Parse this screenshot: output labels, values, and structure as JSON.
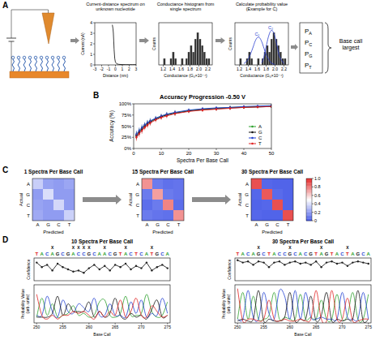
{
  "panel_labels": [
    "A",
    "B",
    "C",
    "D"
  ],
  "panel_a": {
    "probability_symbol": "P",
    "bases": [
      "A",
      "C",
      "G",
      "T"
    ],
    "decision": "Base call largest"
  },
  "chart_data": [
    {
      "type": "line",
      "title": "Current-distance spectrum on unknown nucleotide",
      "x_label": "Distance (nm)",
      "y_label": "Current (nA)",
      "x": [
        -0.45,
        -0.4,
        -0.35,
        -0.3,
        -0.25,
        -0.2,
        -0.1,
        0,
        0.2,
        0.5,
        1,
        1.5,
        2,
        2.5,
        3
      ],
      "values": [
        3.8,
        3.6,
        3.4,
        3.0,
        2.3,
        1.5,
        0.6,
        0.25,
        0.1,
        0.05,
        0.03,
        0.02,
        0.02,
        0.02,
        0.02
      ],
      "color": "#222222",
      "xlim": [
        -3,
        3
      ],
      "xticks": [
        -3,
        -2,
        -1,
        0,
        1,
        2,
        3
      ],
      "ylim": [
        0,
        4
      ],
      "yticks": [
        0,
        1,
        2,
        3,
        4
      ]
    },
    {
      "type": "histogram",
      "title": "Conductance histogram from single spectrum",
      "x_label": "Conductance (G₀×10⁻⁴)",
      "y_label": "Counts",
      "bins": [
        1.15,
        1.2,
        1.25,
        1.3,
        1.35,
        1.4,
        1.45,
        1.5,
        1.55,
        1.6,
        1.65,
        1.7,
        1.75,
        1.8,
        1.85,
        1.9,
        1.95,
        2.0,
        2.05,
        2.1,
        2.15,
        2.2,
        2.25
      ],
      "counts": [
        0,
        1,
        0,
        0,
        1,
        2,
        1,
        0,
        0,
        1,
        0,
        1,
        2,
        3,
        2,
        4,
        5,
        4,
        3,
        2,
        1,
        1
      ],
      "color": "#333333",
      "xlim": [
        1.1,
        2.3
      ],
      "xticks": [
        1.2,
        1.4,
        1.6,
        1.8,
        {
          "value": 2,
          "label": "2.0"
        },
        2.2
      ],
      "ylim": [
        0,
        6.5
      ],
      "tick_labels": "x"
    },
    {
      "type": "histogram",
      "title": "Calculate probability value (Example for C)",
      "x_label": "Conductance (G₀×10⁻⁴)",
      "y_label": "Counts",
      "bins": [
        1.15,
        1.2,
        1.25,
        1.3,
        1.35,
        1.4,
        1.45,
        1.5,
        1.55,
        1.6,
        1.65,
        1.7,
        1.75,
        1.8,
        1.85,
        1.9,
        1.95,
        2.0,
        2.05,
        2.1,
        2.15,
        2.2,
        2.25
      ],
      "counts": [
        0,
        1,
        0,
        0,
        1,
        2,
        1,
        0,
        0,
        1,
        0,
        1,
        2,
        3,
        2,
        4,
        5,
        4,
        3,
        2,
        1,
        1
      ],
      "color": "#333333",
      "xlim": [
        1.1,
        2.3
      ],
      "xticks": [
        1.2,
        1.4,
        1.6,
        1.8,
        {
          "value": 2,
          "label": "2.0"
        },
        2.2
      ],
      "ylim": [
        0,
        6.5
      ],
      "tick_labels": "x",
      "series": [
        {
          "name": "C₁",
          "color": "#2b3fd1",
          "type": "line",
          "line_style": "smooth",
          "x": [
            1.3,
            1.4,
            1.5,
            1.55,
            1.6,
            1.65,
            1.7,
            1.75,
            1.8,
            1.9,
            2.0
          ],
          "values": [
            0.2,
            0.9,
            2.6,
            3.6,
            4.2,
            4.2,
            3.6,
            2.6,
            1.6,
            0.4,
            0.05
          ]
        },
        {
          "name": "C₂",
          "color": "#2b3fd1",
          "type": "line",
          "line_style": "smooth",
          "x": [
            1.7,
            1.75,
            1.8,
            1.85,
            1.9,
            1.95,
            2.0,
            2.05,
            2.1,
            2.2
          ],
          "values": [
            0.3,
            1.2,
            2.8,
            4.3,
            5.2,
            5.2,
            4.3,
            2.8,
            1.3,
            0.2
          ]
        }
      ]
    },
    {
      "type": "line",
      "title": "Accuracy Progression -0.50 V",
      "x_label": "Spectra Per Base Call",
      "y_label": "Accuracy (%)",
      "x": [
        1,
        2,
        3,
        4,
        5,
        6,
        8,
        10,
        12,
        15,
        20,
        25,
        30,
        35,
        40,
        45,
        50
      ],
      "xlim": [
        0,
        50
      ],
      "xticks": [
        0,
        10,
        20,
        30,
        40,
        50
      ],
      "ylim": [
        0,
        100
      ],
      "yticks": [
        {
          "value": 0,
          "label": "0%"
        },
        {
          "value": 25,
          "label": "25%"
        },
        {
          "value": 50,
          "label": "50%"
        },
        {
          "value": 75,
          "label": "75%"
        },
        {
          "value": 100,
          "label": "100%"
        }
      ],
      "legend": "lower right",
      "marker": "circle",
      "series": [
        {
          "name": "A",
          "color": "#2ca02c",
          "values": [
            30,
            38,
            45,
            52,
            57,
            61,
            67,
            72,
            76,
            80,
            85,
            88,
            90,
            92,
            93,
            94,
            95
          ],
          "errors": [
            8,
            7,
            7,
            6,
            6,
            6,
            5,
            5,
            5,
            5,
            4,
            4,
            4,
            4,
            3,
            3,
            3
          ]
        },
        {
          "name": "G",
          "color": "#111111",
          "values": [
            28,
            36,
            43,
            50,
            55,
            59,
            66,
            71,
            75,
            79,
            84,
            87,
            89,
            91,
            92,
            93,
            94
          ],
          "errors": [
            8,
            7,
            7,
            6,
            6,
            6,
            5,
            5,
            5,
            5,
            4,
            4,
            4,
            4,
            3,
            3,
            3
          ]
        },
        {
          "name": "C",
          "color": "#1f3fd0",
          "values": [
            32,
            40,
            47,
            53,
            58,
            62,
            68,
            73,
            77,
            81,
            86,
            89,
            91,
            92,
            94,
            95,
            96
          ],
          "errors": [
            8,
            7,
            7,
            6,
            6,
            6,
            5,
            5,
            5,
            5,
            4,
            4,
            4,
            4,
            3,
            3,
            3
          ]
        },
        {
          "name": "T",
          "color": "#e02020",
          "values": [
            25,
            33,
            40,
            47,
            52,
            57,
            64,
            69,
            73,
            78,
            83,
            86,
            88,
            90,
            92,
            93,
            94
          ],
          "errors": [
            8,
            7,
            7,
            6,
            6,
            6,
            5,
            5,
            5,
            5,
            4,
            4,
            4,
            4,
            3,
            3,
            3
          ]
        }
      ]
    },
    {
      "type": "heatmap",
      "title": "1 Spectra Per Base Call",
      "x_label": "Predicted",
      "y_label": "Actual",
      "categories": [
        "A",
        "G",
        "C",
        "T"
      ],
      "cells": [
        [
          0.35,
          0.22,
          0.2,
          0.23
        ],
        [
          0.2,
          0.4,
          0.2,
          0.2
        ],
        [
          0.22,
          0.2,
          0.38,
          0.2
        ],
        [
          0.24,
          0.2,
          0.2,
          0.36
        ]
      ],
      "color_range": [
        0,
        1
      ]
    },
    {
      "type": "heatmap",
      "title": "15 Spectra Per Base Call",
      "x_label": "Predicted",
      "y_label": "Actual",
      "categories": [
        "A",
        "G",
        "C",
        "T"
      ],
      "cells": [
        [
          0.75,
          0.1,
          0.07,
          0.08
        ],
        [
          0.1,
          0.72,
          0.1,
          0.08
        ],
        [
          0.06,
          0.1,
          0.78,
          0.06
        ],
        [
          0.1,
          0.08,
          0.07,
          0.75
        ]
      ],
      "color_range": [
        0,
        1
      ]
    },
    {
      "type": "heatmap",
      "title": "30 Spectra Per Base Call",
      "x_label": "Predicted",
      "y_label": "Actual",
      "categories": [
        "A",
        "G",
        "C",
        "T"
      ],
      "cells": [
        [
          0.9,
          0.04,
          0.03,
          0.03
        ],
        [
          0.04,
          0.88,
          0.05,
          0.03
        ],
        [
          0.03,
          0.04,
          0.9,
          0.03
        ],
        [
          0.04,
          0.03,
          0.03,
          0.9
        ]
      ],
      "color_range": [
        0,
        1
      ],
      "color_ticks": [
        0,
        0.2,
        0.4,
        0.6,
        0.8,
        {
          "value": 1,
          "label": "1.0"
        }
      ]
    },
    {
      "type": "line",
      "title": "10 Spectra Per Base Call",
      "y_label": "Confidence",
      "sequence": "TACAGCGACCGCAACGTACTCATGCA",
      "mismatch_marker": "X",
      "mismatches": [
        253,
        257,
        258,
        259,
        260,
        263,
        267,
        272
      ],
      "x": [
        250,
        251,
        252,
        253,
        254,
        255,
        256,
        257,
        258,
        259,
        260,
        261,
        262,
        263,
        264,
        265,
        266,
        267,
        268,
        269,
        270,
        271,
        272,
        273,
        274,
        275
      ],
      "values": [
        0.8,
        0.6,
        0.7,
        0.45,
        0.75,
        0.6,
        0.5,
        0.4,
        0.45,
        0.35,
        0.55,
        0.7,
        0.5,
        0.65,
        0.45,
        0.7,
        0.6,
        0.75,
        0.5,
        0.65,
        0.55,
        0.8,
        0.45,
        0.6,
        0.7,
        0.55
      ],
      "color": "#222222",
      "marker": "circle",
      "xlim": [
        249.5,
        275.5
      ],
      "ylim": [
        0,
        1
      ],
      "tick_labels": false
    },
    {
      "type": "line",
      "x_label": "Base Call",
      "y_label": "Probability Value (arb. units)",
      "x": [
        250,
        251,
        252,
        253,
        254,
        255,
        256,
        257,
        258,
        259,
        260,
        261,
        262,
        263,
        264,
        265,
        266,
        267,
        268,
        269,
        270,
        271,
        272,
        273,
        274,
        275
      ],
      "xlim": [
        249.5,
        275.5
      ],
      "xticks": [
        250,
        255,
        260,
        265,
        270,
        275
      ],
      "ylim": [
        0,
        1
      ],
      "tick_labels": "x",
      "line_style": "smooth",
      "series": [
        {
          "name": "A",
          "color": "#2ca02c",
          "values": [
            0.15,
            0.65,
            0.2,
            0.5,
            0.15,
            0.2,
            0.25,
            0.45,
            0.2,
            0.25,
            0.15,
            0.2,
            0.55,
            0.6,
            0.2,
            0.15,
            0.25,
            0.7,
            0.2,
            0.2,
            0.25,
            0.75,
            0.3,
            0.15,
            0.2,
            0.55
          ]
        },
        {
          "name": "C",
          "color": "#1f3fd0",
          "values": [
            0.2,
            0.2,
            0.7,
            0.3,
            0.15,
            0.6,
            0.3,
            0.25,
            0.5,
            0.4,
            0.3,
            0.65,
            0.2,
            0.2,
            0.5,
            0.2,
            0.2,
            0.15,
            0.55,
            0.25,
            0.6,
            0.15,
            0.25,
            0.2,
            0.65,
            0.25
          ]
        },
        {
          "name": "G",
          "color": "#111111",
          "values": [
            0.15,
            0.15,
            0.15,
            0.25,
            0.7,
            0.2,
            0.5,
            0.3,
            0.3,
            0.3,
            0.55,
            0.15,
            0.3,
            0.15,
            0.25,
            0.65,
            0.2,
            0.1,
            0.25,
            0.15,
            0.2,
            0.1,
            0.35,
            0.6,
            0.15,
            0.2
          ]
        },
        {
          "name": "T",
          "color": "#e02020",
          "values": [
            0.75,
            0.2,
            0.1,
            0.2,
            0.1,
            0.2,
            0.2,
            0.3,
            0.25,
            0.3,
            0.2,
            0.1,
            0.3,
            0.15,
            0.3,
            0.2,
            0.6,
            0.15,
            0.3,
            0.65,
            0.2,
            0.15,
            0.45,
            0.3,
            0.15,
            0.2
          ]
        }
      ]
    },
    {
      "type": "line",
      "title": "30 Spectra Per Base Call",
      "y_label": "Confidence",
      "sequence": "TACAGCTACCGCACGTAGTACTAGCA",
      "mismatch_marker": "X",
      "mismatches": [
        254,
        260,
        266,
        271
      ],
      "x": [
        250,
        251,
        252,
        253,
        254,
        255,
        256,
        257,
        258,
        259,
        260,
        261,
        262,
        263,
        264,
        265,
        266,
        267,
        268,
        269,
        270,
        271,
        272,
        273,
        274,
        275
      ],
      "values": [
        0.9,
        0.8,
        0.85,
        0.7,
        0.85,
        0.8,
        0.6,
        0.8,
        0.85,
        0.7,
        0.8,
        0.85,
        0.75,
        0.8,
        0.7,
        0.85,
        0.6,
        0.8,
        0.85,
        0.75,
        0.8,
        0.65,
        0.8,
        0.85,
        0.8,
        0.75
      ],
      "color": "#222222",
      "marker": "circle",
      "xlim": [
        249.5,
        275.5
      ],
      "ylim": [
        0,
        1
      ],
      "tick_labels": false
    },
    {
      "type": "line",
      "x_label": "Base Call",
      "y_label": "Probability Value (arb. units)",
      "x": [
        250,
        251,
        252,
        253,
        254,
        255,
        256,
        257,
        258,
        259,
        260,
        261,
        262,
        263,
        264,
        265,
        266,
        267,
        268,
        269,
        270,
        271,
        272,
        273,
        274,
        275
      ],
      "xlim": [
        249.5,
        275.5
      ],
      "xticks": [
        250,
        255,
        260,
        265,
        270,
        275
      ],
      "ylim": [
        0,
        1
      ],
      "tick_labels": "x",
      "line_style": "smooth",
      "series": [
        {
          "name": "A",
          "color": "#2ca02c",
          "values": [
            0.1,
            0.8,
            0.1,
            0.7,
            0.1,
            0.1,
            0.2,
            0.8,
            0.1,
            0.15,
            0.1,
            0.1,
            0.75,
            0.1,
            0.15,
            0.1,
            0.6,
            0.1,
            0.1,
            0.75,
            0.1,
            0.2,
            0.8,
            0.1,
            0.1,
            0.75
          ]
        },
        {
          "name": "C",
          "color": "#1f3fd0",
          "values": [
            0.1,
            0.1,
            0.85,
            0.15,
            0.1,
            0.8,
            0.25,
            0.1,
            0.85,
            0.7,
            0.1,
            0.85,
            0.1,
            0.8,
            0.15,
            0.1,
            0.15,
            0.1,
            0.1,
            0.1,
            0.8,
            0.15,
            0.1,
            0.1,
            0.8,
            0.1
          ]
        },
        {
          "name": "G",
          "color": "#111111",
          "values": [
            0.05,
            0.1,
            0.05,
            0.1,
            0.85,
            0.05,
            0.1,
            0.05,
            0.05,
            0.15,
            0.8,
            0.05,
            0.1,
            0.1,
            0.7,
            0.05,
            0.2,
            0.8,
            0.05,
            0.1,
            0.05,
            0.1,
            0.1,
            0.85,
            0.05,
            0.1
          ]
        },
        {
          "name": "T",
          "color": "#e02020",
          "values": [
            0.9,
            0.05,
            0.1,
            0.1,
            0.05,
            0.1,
            0.6,
            0.1,
            0.05,
            0.1,
            0.05,
            0.05,
            0.1,
            0.05,
            0.1,
            0.85,
            0.1,
            0.05,
            0.85,
            0.1,
            0.1,
            0.65,
            0.05,
            0.05,
            0.1,
            0.1
          ]
        }
      ]
    }
  ]
}
